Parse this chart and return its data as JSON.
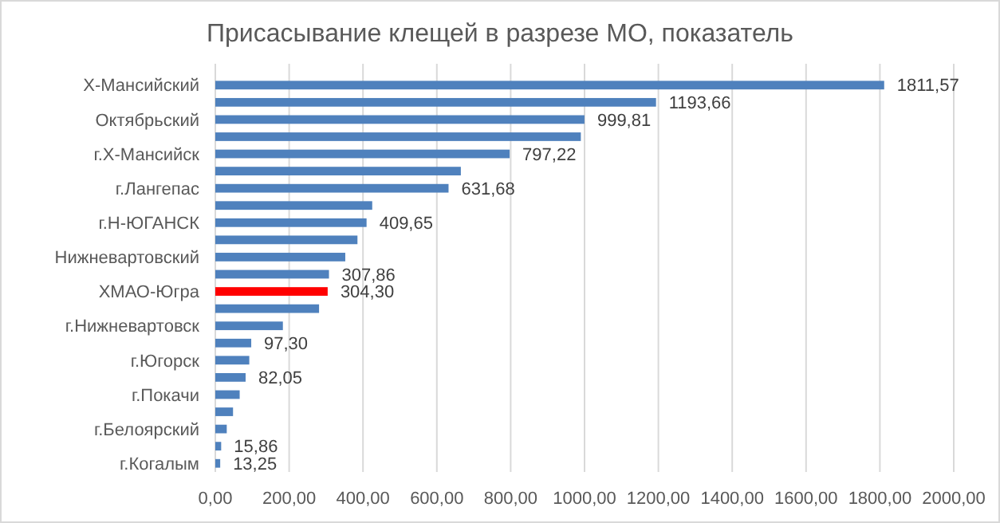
{
  "chart_data": {
    "type": "bar",
    "orientation": "horizontal",
    "title": "Присасывание клещей в разрезе МО, показатель",
    "categories": [
      "Х-Мансийский",
      null,
      "Октябрьский",
      null,
      "г.Х-Мансийск",
      null,
      "г.Лангепас",
      null,
      "г.Н-ЮГАНСК",
      null,
      "Нижневартовский",
      null,
      "ХМАО-Югра",
      null,
      "г.Нижневартовск",
      null,
      "г.Югорск",
      null,
      "г.Покачи",
      null,
      "г.Белоярский",
      null,
      "г.Когалым"
    ],
    "values": [
      1811.57,
      1193.66,
      999.81,
      990,
      797.22,
      665,
      631.68,
      425,
      409.65,
      385,
      352,
      307.86,
      304.3,
      281,
      183,
      97.3,
      92,
      82.05,
      66,
      48,
      31,
      15.86,
      13.25
    ],
    "value_labels": [
      "1811,57",
      "1193,66",
      "999,81",
      null,
      "797,22",
      null,
      "631,68",
      null,
      "409,65",
      null,
      null,
      "307,86",
      "304,30",
      null,
      null,
      "97,30",
      null,
      "82,05",
      null,
      null,
      null,
      "15,86",
      "13,25"
    ],
    "colors": [
      "#4f81bd",
      "#4f81bd",
      "#4f81bd",
      "#4f81bd",
      "#4f81bd",
      "#4f81bd",
      "#4f81bd",
      "#4f81bd",
      "#4f81bd",
      "#4f81bd",
      "#4f81bd",
      "#4f81bd",
      "#ff0000",
      "#4f81bd",
      "#4f81bd",
      "#4f81bd",
      "#4f81bd",
      "#4f81bd",
      "#4f81bd",
      "#4f81bd",
      "#4f81bd",
      "#4f81bd",
      "#4f81bd"
    ],
    "xlim": [
      0,
      2000
    ],
    "xticks": [
      {
        "value": 0,
        "label": "0,00"
      },
      {
        "value": 200,
        "label": "200,00"
      },
      {
        "value": 400,
        "label": "400,00"
      },
      {
        "value": 600,
        "label": "600,00"
      },
      {
        "value": 800,
        "label": "800,00"
      },
      {
        "value": 1000,
        "label": "1000,00"
      },
      {
        "value": 1200,
        "label": "1200,00"
      },
      {
        "value": 1400,
        "label": "1400,00"
      },
      {
        "value": 1600,
        "label": "1600,00"
      },
      {
        "value": 1800,
        "label": "1800,00"
      },
      {
        "value": 2000,
        "label": "2000,00"
      }
    ],
    "grid": "x"
  }
}
